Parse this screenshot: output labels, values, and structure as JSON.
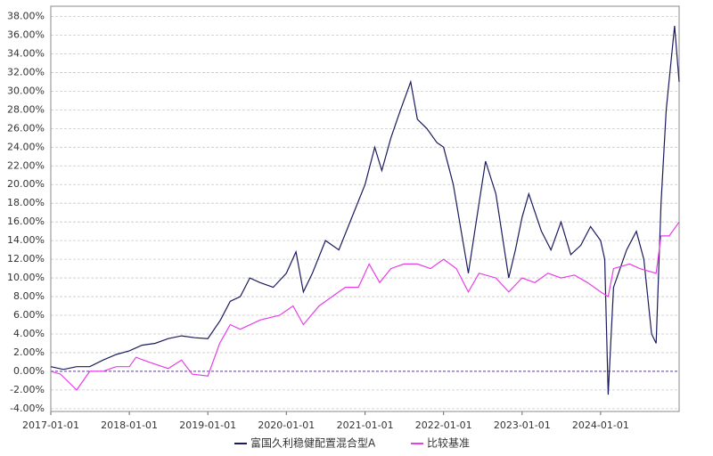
{
  "chart_data": {
    "type": "line",
    "xlim": [
      "2017-01-01",
      "2024-12-31"
    ],
    "xticks": [
      "2017-01-01",
      "2018-01-01",
      "2019-01-01",
      "2020-01-01",
      "2021-01-01",
      "2022-01-01",
      "2023-01-01",
      "2024-01-01"
    ],
    "ylim": [
      -4.3,
      39.1
    ],
    "yticks": [
      {
        "value": -4,
        "label": "-4.00%"
      },
      {
        "value": -2,
        "label": "-2.00%"
      },
      {
        "value": 0,
        "label": "0.00%"
      },
      {
        "value": 2,
        "label": "2.00%"
      },
      {
        "value": 4,
        "label": "4.00%"
      },
      {
        "value": 6,
        "label": "6.00%"
      },
      {
        "value": 8,
        "label": "8.00%"
      },
      {
        "value": 10,
        "label": "10.00%"
      },
      {
        "value": 12,
        "label": "12.00%"
      },
      {
        "value": 14,
        "label": "14.00%"
      },
      {
        "value": 16,
        "label": "16.00%"
      },
      {
        "value": 18,
        "label": "18.00%"
      },
      {
        "value": 20,
        "label": "20.00%"
      },
      {
        "value": 22,
        "label": "22.00%"
      },
      {
        "value": 24,
        "label": "24.00%"
      },
      {
        "value": 26,
        "label": "26.00%"
      },
      {
        "value": 28,
        "label": "28.00%"
      },
      {
        "value": 30,
        "label": "30.00%"
      },
      {
        "value": 32,
        "label": "32.00%"
      },
      {
        "value": 34,
        "label": "34.00%"
      },
      {
        "value": 36,
        "label": "36.00%"
      },
      {
        "value": 38,
        "label": "38.00%"
      }
    ],
    "grid": true,
    "reference_line": {
      "value": 0,
      "color": "#5a3c9c"
    },
    "legend": "bottom",
    "series": [
      {
        "name": "富国久利稳健配置混合型A",
        "color": "#1a1a5e",
        "x": [
          "2017-01-01",
          "2017-03-01",
          "2017-05-01",
          "2017-07-01",
          "2017-09-01",
          "2017-11-01",
          "2018-01-01",
          "2018-03-01",
          "2018-05-01",
          "2018-07-01",
          "2018-09-01",
          "2018-11-01",
          "2019-01-01",
          "2019-03-01",
          "2019-04-15",
          "2019-06-01",
          "2019-07-15",
          "2019-09-01",
          "2019-11-01",
          "2020-01-01",
          "2020-02-15",
          "2020-03-20",
          "2020-05-01",
          "2020-07-01",
          "2020-09-01",
          "2020-11-01",
          "2021-01-01",
          "2021-02-15",
          "2021-03-20",
          "2021-05-01",
          "2021-06-15",
          "2021-08-01",
          "2021-09-01",
          "2021-10-15",
          "2021-12-01",
          "2022-01-01",
          "2022-02-15",
          "2022-04-26",
          "2022-06-15",
          "2022-07-15",
          "2022-09-01",
          "2022-10-31",
          "2022-12-01",
          "2023-01-01",
          "2023-02-01",
          "2023-04-01",
          "2023-05-15",
          "2023-07-01",
          "2023-08-15",
          "2023-10-01",
          "2023-11-15",
          "2024-01-01",
          "2024-01-20",
          "2024-02-05",
          "2024-03-01",
          "2024-05-01",
          "2024-06-15",
          "2024-07-20",
          "2024-08-25",
          "2024-09-15",
          "2024-10-08",
          "2024-11-01",
          "2024-12-10",
          "2024-12-31"
        ],
        "values": [
          0.5,
          0.2,
          0.5,
          0.5,
          1.2,
          1.8,
          2.2,
          2.8,
          3.0,
          3.5,
          3.8,
          3.6,
          3.5,
          5.5,
          7.5,
          8.0,
          10.0,
          9.5,
          9.0,
          10.5,
          12.8,
          8.5,
          10.5,
          14.0,
          13.0,
          16.5,
          20.0,
          24.0,
          21.5,
          25.0,
          28.0,
          31.0,
          27.0,
          26.0,
          24.5,
          24.0,
          20.0,
          10.5,
          18.0,
          22.5,
          19.0,
          10.0,
          13.0,
          16.5,
          19.0,
          15.0,
          13.0,
          16.0,
          12.5,
          13.5,
          15.5,
          14.0,
          12.0,
          -2.5,
          9.0,
          13.0,
          15.0,
          12.0,
          4.0,
          3.0,
          18.0,
          28.0,
          37.0,
          31.0
        ]
      },
      {
        "name": "比较基准",
        "color": "#e83ee8",
        "x": [
          "2017-01-01",
          "2017-02-15",
          "2017-05-01",
          "2017-07-01",
          "2017-09-01",
          "2017-11-01",
          "2018-01-01",
          "2018-02-01",
          "2018-04-01",
          "2018-07-01",
          "2018-09-01",
          "2018-10-20",
          "2019-01-01",
          "2019-02-25",
          "2019-04-15",
          "2019-06-01",
          "2019-09-01",
          "2019-12-01",
          "2020-02-01",
          "2020-03-20",
          "2020-06-01",
          "2020-08-01",
          "2020-10-01",
          "2020-12-01",
          "2021-01-20",
          "2021-03-10",
          "2021-05-01",
          "2021-07-01",
          "2021-09-01",
          "2021-11-01",
          "2022-01-01",
          "2022-03-01",
          "2022-04-26",
          "2022-06-15",
          "2022-09-01",
          "2022-10-31",
          "2023-01-01",
          "2023-03-01",
          "2023-05-01",
          "2023-07-01",
          "2023-09-01",
          "2023-11-01",
          "2024-01-01",
          "2024-02-05",
          "2024-03-01",
          "2024-05-15",
          "2024-07-01",
          "2024-09-15",
          "2024-10-08",
          "2024-11-15",
          "2024-12-31"
        ],
        "values": [
          0.0,
          -0.3,
          -2.0,
          0.0,
          0.0,
          0.5,
          0.5,
          1.5,
          1.0,
          0.3,
          1.2,
          -0.3,
          -0.5,
          3.0,
          5.0,
          4.5,
          5.5,
          6.0,
          7.0,
          5.0,
          7.0,
          8.0,
          9.0,
          9.0,
          11.5,
          9.5,
          11.0,
          11.5,
          11.5,
          11.0,
          12.0,
          11.0,
          8.5,
          10.5,
          10.0,
          8.5,
          10.0,
          9.5,
          10.5,
          10.0,
          10.3,
          9.5,
          8.5,
          8.0,
          11.0,
          11.5,
          11.0,
          10.5,
          14.5,
          14.5,
          16.0
        ]
      }
    ]
  }
}
